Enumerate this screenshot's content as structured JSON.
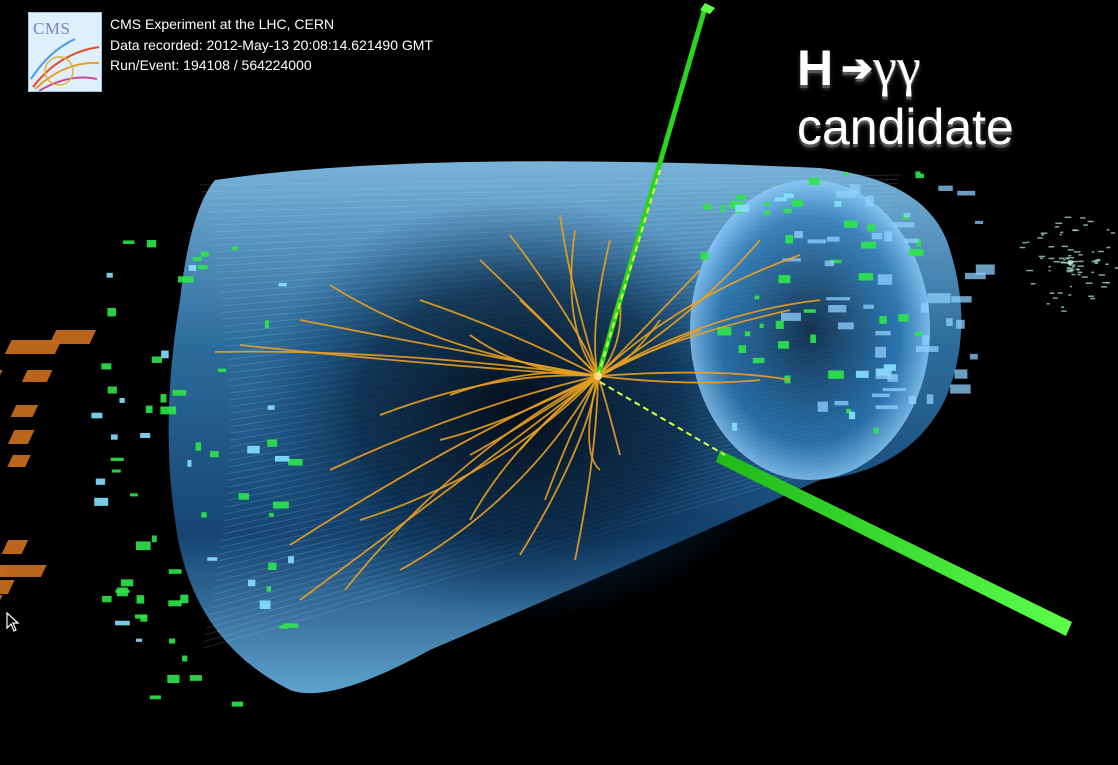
{
  "logo": {
    "text": "CMS"
  },
  "event_info": {
    "experiment": "CMS Experiment at the LHC, CERN",
    "recorded": "Data recorded: 2012-May-13 20:08:14.621490 GMT",
    "run_event": "Run/Event: 194108 / 564224000"
  },
  "headline": {
    "particle": "H",
    "arrow": "➔",
    "products": "γγ",
    "subtitle": "candidate"
  },
  "colors": {
    "background": "#000000",
    "barrel": "#4fa9dd",
    "tracks": "#e8a020",
    "photons": "#39ff2e",
    "hcal_towers": "#c96a1c",
    "muon_hits": "#2fe64a"
  }
}
